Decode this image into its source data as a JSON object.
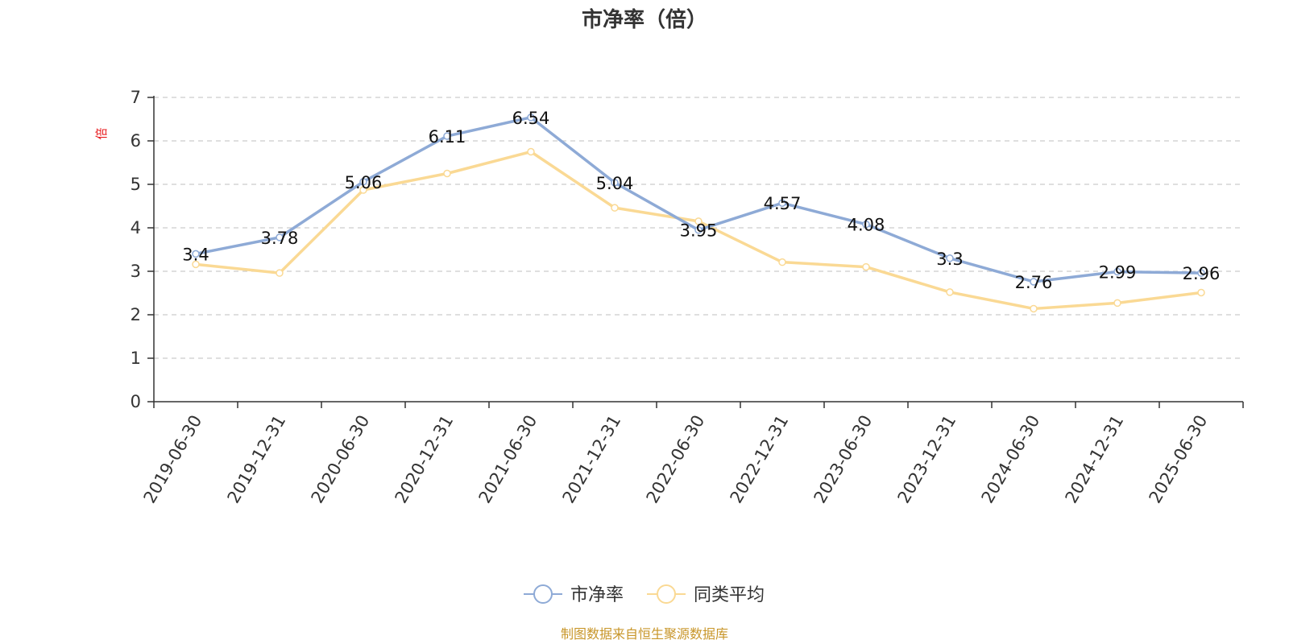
{
  "chart_data": {
    "type": "line",
    "title": "市净率（倍）",
    "ylabel": "倍",
    "xlabel": "",
    "ylim": [
      0,
      7
    ],
    "yticks": [
      0,
      1,
      2,
      3,
      4,
      5,
      6,
      7
    ],
    "grid": true,
    "legend_position": "bottom",
    "categories": [
      "2019-06-30",
      "2019-12-31",
      "2020-06-30",
      "2020-12-31",
      "2021-06-30",
      "2021-12-31",
      "2022-06-30",
      "2022-12-31",
      "2023-06-30",
      "2023-12-31",
      "2024-06-30",
      "2024-12-31",
      "2025-06-30"
    ],
    "series": [
      {
        "name": "市净率",
        "color": "#8eaad6",
        "show_labels": true,
        "values": [
          3.4,
          3.78,
          5.06,
          6.11,
          6.54,
          5.04,
          3.95,
          4.57,
          4.08,
          3.3,
          2.76,
          2.99,
          2.96
        ],
        "labels": [
          "3.4",
          "3.78",
          "5.06",
          "6.11",
          "6.54",
          "5.04",
          "3.95",
          "4.57",
          "4.08",
          "3.3",
          "2.76",
          "2.99",
          "2.96"
        ]
      },
      {
        "name": "同类平均",
        "color": "#fad994",
        "show_labels": false,
        "values": [
          3.16,
          2.96,
          4.87,
          5.25,
          5.75,
          4.46,
          4.15,
          3.21,
          3.1,
          2.52,
          2.14,
          2.27,
          2.51
        ]
      }
    ],
    "source": "制图数据来自恒生聚源数据库"
  }
}
